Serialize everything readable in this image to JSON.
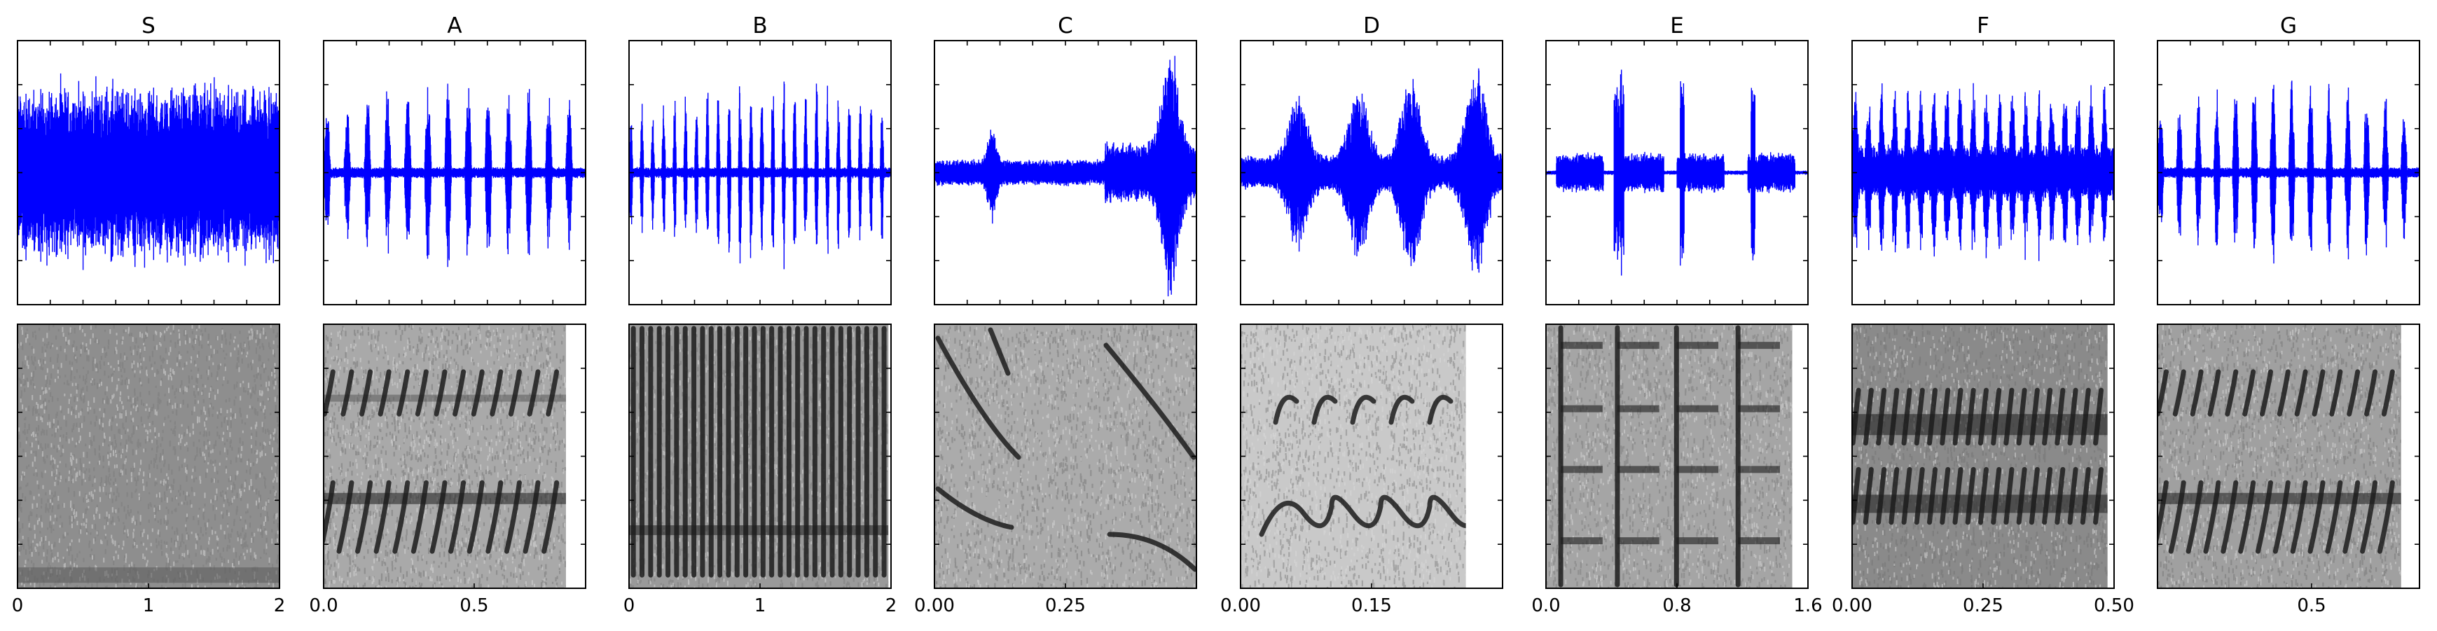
{
  "figure": {
    "description_colors": {
      "waveform": "#0000ff",
      "spectrogram_dark": "#1a1a1a",
      "spectrogram_light": "#d9d9d9",
      "axes": "#000000",
      "background": "#ffffff"
    }
  },
  "chart_data": [
    {
      "type": "line",
      "panel": "waveform",
      "title": "S",
      "pattern": "noise",
      "xlim": [
        0,
        2
      ],
      "ylabel": "",
      "xlabel": ""
    },
    {
      "type": "line",
      "panel": "waveform",
      "title": "A",
      "pattern": "pulses",
      "pulses": 13,
      "xlim": [
        0,
        1.0
      ]
    },
    {
      "type": "line",
      "panel": "waveform",
      "title": "B",
      "pattern": "pulses",
      "pulses": 24,
      "xlim": [
        0,
        2
      ]
    },
    {
      "type": "line",
      "panel": "waveform",
      "title": "C",
      "pattern": "sparse",
      "xlim": [
        0,
        0.5
      ]
    },
    {
      "type": "line",
      "panel": "waveform",
      "title": "D",
      "pattern": "bursts",
      "xlim": [
        0,
        0.3
      ]
    },
    {
      "type": "line",
      "panel": "waveform",
      "title": "E",
      "pattern": "blocks",
      "blocks": 4,
      "xlim": [
        0,
        1.6
      ]
    },
    {
      "type": "line",
      "panel": "waveform",
      "title": "F",
      "pattern": "dense-pulses",
      "pulses": 20,
      "xlim": [
        0,
        0.5
      ]
    },
    {
      "type": "line",
      "panel": "waveform",
      "title": "G",
      "pattern": "pulses",
      "pulses": 14,
      "xlim": [
        0,
        1.0
      ]
    },
    {
      "type": "heatmap",
      "panel": "spectrogram",
      "title": "S",
      "xticks": [
        0,
        1,
        2
      ],
      "xtick_labels": [
        "0",
        "1",
        "2"
      ],
      "xlim": [
        0,
        2
      ]
    },
    {
      "type": "heatmap",
      "panel": "spectrogram",
      "title": "A",
      "xticks": [
        0.0,
        0.5
      ],
      "xtick_labels": [
        "0.0",
        "0.5"
      ],
      "xlim": [
        0,
        0.87
      ]
    },
    {
      "type": "heatmap",
      "panel": "spectrogram",
      "title": "B",
      "xticks": [
        0,
        1,
        2
      ],
      "xtick_labels": [
        "0",
        "1",
        "2"
      ],
      "xlim": [
        0,
        2
      ]
    },
    {
      "type": "heatmap",
      "panel": "spectrogram",
      "title": "C",
      "xticks": [
        0.0,
        0.25
      ],
      "xtick_labels": [
        "0.00",
        "0.25"
      ],
      "xlim": [
        0,
        0.5
      ]
    },
    {
      "type": "heatmap",
      "panel": "spectrogram",
      "title": "D",
      "xticks": [
        0.0,
        0.15
      ],
      "xtick_labels": [
        "0.00",
        "0.15"
      ],
      "xlim": [
        0,
        0.3
      ]
    },
    {
      "type": "heatmap",
      "panel": "spectrogram",
      "title": "E",
      "xticks": [
        0.0,
        0.8,
        1.6
      ],
      "xtick_labels": [
        "0.0",
        "0.8",
        "1.6"
      ],
      "xlim": [
        0,
        1.6
      ]
    },
    {
      "type": "heatmap",
      "panel": "spectrogram",
      "title": "F",
      "xticks": [
        0.0,
        0.25,
        0.5
      ],
      "xtick_labels": [
        "0.00",
        "0.25",
        "0.50"
      ],
      "xlim": [
        0,
        0.5
      ]
    },
    {
      "type": "heatmap",
      "panel": "spectrogram",
      "title": "G",
      "xticks": [
        0.5
      ],
      "xtick_labels": [
        "0.5"
      ],
      "xlim": [
        0,
        0.85
      ]
    }
  ]
}
